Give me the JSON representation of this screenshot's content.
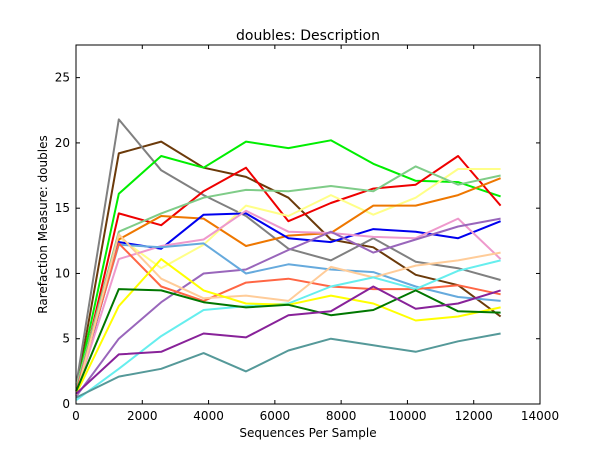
{
  "chart_data": {
    "type": "line",
    "title": "doubles: Description",
    "xlabel": "Sequences Per Sample",
    "ylabel": "Rarefaction Measure: doubles",
    "xlim": [
      0,
      14000
    ],
    "ylim": [
      0,
      27.5
    ],
    "xticks": [
      0,
      2000,
      4000,
      6000,
      8000,
      10000,
      12000,
      14000
    ],
    "yticks": [
      0,
      5,
      10,
      15,
      20,
      25
    ],
    "grid": false,
    "legend": "none",
    "x": [
      10,
      1290,
      2570,
      3850,
      5130,
      6410,
      7690,
      8970,
      10250,
      11530,
      12810
    ],
    "series": [
      {
        "color": "#6b3a0a",
        "values": [
          1.0,
          19.2,
          20.1,
          18.1,
          17.4,
          15.8,
          12.6,
          12.0,
          9.9,
          9.1,
          6.7
        ]
      },
      {
        "color": "#808080",
        "values": [
          1.5,
          21.8,
          17.9,
          16.0,
          14.4,
          11.9,
          11.0,
          12.7,
          10.9,
          10.4,
          9.5
        ]
      },
      {
        "color": "#00ee00",
        "values": [
          1.0,
          16.1,
          19.0,
          18.1,
          20.1,
          19.6,
          20.2,
          18.4,
          17.1,
          17.0,
          15.9
        ]
      },
      {
        "color": "#ee0000",
        "values": [
          0.6,
          14.6,
          13.7,
          16.3,
          18.1,
          14.0,
          15.4,
          16.5,
          16.8,
          19.0,
          15.2
        ]
      },
      {
        "color": "#ffff88",
        "values": [
          1.3,
          12.8,
          10.4,
          12.2,
          15.2,
          14.4,
          16.0,
          14.5,
          15.8,
          18.0,
          18.0
        ]
      },
      {
        "color": "#7fcc88",
        "values": [
          1.2,
          13.2,
          14.6,
          15.8,
          16.4,
          16.3,
          16.7,
          16.3,
          18.2,
          16.8,
          17.5
        ]
      },
      {
        "color": "#ee7700",
        "values": [
          1.0,
          12.6,
          14.4,
          14.2,
          12.1,
          12.9,
          13.1,
          15.2,
          15.2,
          16.0,
          17.3
        ]
      },
      {
        "color": "#0000ee",
        "values": [
          0.8,
          12.4,
          11.9,
          14.5,
          14.6,
          12.7,
          12.4,
          13.4,
          13.2,
          12.7,
          14.0
        ]
      },
      {
        "color": "#ee99cc",
        "values": [
          0.9,
          11.1,
          12.1,
          12.6,
          14.8,
          13.2,
          13.1,
          12.8,
          12.7,
          14.2,
          11.1
        ]
      },
      {
        "color": "#9966bb",
        "values": [
          0.6,
          5.0,
          7.8,
          10.0,
          10.3,
          11.8,
          13.2,
          11.6,
          12.6,
          13.6,
          14.2
        ]
      },
      {
        "color": "#66aadd",
        "values": [
          1.1,
          12.2,
          12.0,
          12.3,
          10.0,
          10.7,
          10.3,
          10.1,
          9.0,
          8.2,
          7.9
        ]
      },
      {
        "color": "#ff6644",
        "values": [
          1.0,
          12.3,
          9.0,
          7.9,
          9.3,
          9.6,
          9.0,
          8.8,
          8.8,
          9.1,
          8.4
        ]
      },
      {
        "color": "#ffcc99",
        "values": [
          0.7,
          13.0,
          9.6,
          8.1,
          8.3,
          7.9,
          10.5,
          9.7,
          10.6,
          11.0,
          11.6
        ]
      },
      {
        "color": "#66eeee",
        "values": [
          0.3,
          2.7,
          5.2,
          7.2,
          7.5,
          7.7,
          9.0,
          9.7,
          8.8,
          10.2,
          11.0
        ]
      },
      {
        "color": "#ffff00",
        "values": [
          0.8,
          7.5,
          11.1,
          8.7,
          7.7,
          7.6,
          8.3,
          7.7,
          6.4,
          6.7,
          7.4
        ]
      },
      {
        "color": "#007700",
        "values": [
          1.0,
          8.8,
          8.7,
          7.8,
          7.4,
          7.6,
          6.8,
          7.2,
          8.7,
          7.1,
          7.0
        ]
      },
      {
        "color": "#882299",
        "values": [
          0.8,
          3.8,
          4.0,
          5.4,
          5.1,
          6.8,
          7.1,
          9.0,
          7.3,
          7.7,
          8.7
        ]
      },
      {
        "color": "#559999",
        "values": [
          0.5,
          2.1,
          2.7,
          3.9,
          2.5,
          4.1,
          5.0,
          4.5,
          4.0,
          4.8,
          5.4
        ]
      }
    ]
  }
}
